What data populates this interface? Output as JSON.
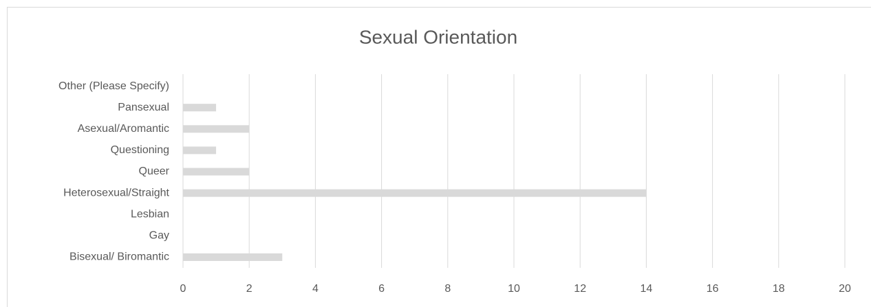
{
  "chart_data": {
    "type": "barh",
    "title": "Sexual Orientation",
    "categories": [
      "Bisexual/ Biromantic",
      "Gay",
      "Lesbian",
      "Heterosexual/Straight",
      "Queer",
      "Questioning",
      "Asexual/Aromantic",
      "Pansexual",
      "Other (Please Specify)"
    ],
    "values": [
      3,
      0,
      0,
      14,
      2,
      1,
      2,
      1,
      0
    ],
    "color": "#d9d9d9",
    "xlim": [
      0,
      20
    ],
    "xticks": [
      0,
      2,
      4,
      6,
      8,
      10,
      12,
      14,
      16,
      18,
      20
    ],
    "grid": true
  }
}
